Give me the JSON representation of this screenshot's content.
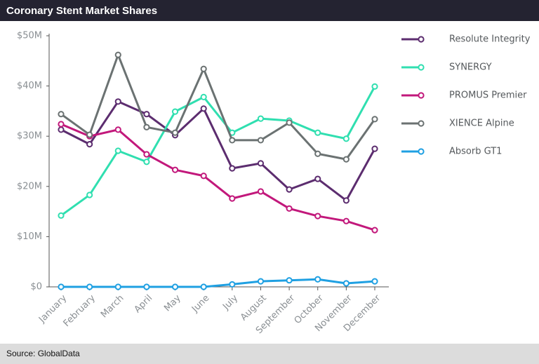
{
  "chart_data": {
    "type": "line",
    "title": "Coronary Stent Market Shares",
    "source": "Source: GlobalData",
    "categories": [
      "January",
      "February",
      "March",
      "April",
      "May",
      "June",
      "July",
      "August",
      "September",
      "October",
      "November",
      "December"
    ],
    "series": [
      {
        "name": "Resolute Integrity",
        "color": "#5c2d6f",
        "values": [
          31.3,
          28.4,
          36.9,
          34.4,
          30.2,
          35.5,
          23.6,
          24.6,
          19.4,
          21.5,
          17.2,
          27.5
        ]
      },
      {
        "name": "SYNERGY",
        "color": "#30dfb0",
        "values": [
          14.2,
          18.3,
          27.1,
          24.9,
          34.9,
          37.8,
          30.7,
          33.5,
          33.1,
          30.7,
          29.5,
          39.9
        ]
      },
      {
        "name": "PROMUS Premier",
        "color": "#c2187b",
        "values": [
          32.4,
          30.0,
          31.3,
          26.4,
          23.3,
          22.1,
          17.6,
          19.0,
          15.6,
          14.1,
          13.1,
          11.3
        ]
      },
      {
        "name": "XIENCE Alpine",
        "color": "#6b7272",
        "values": [
          34.4,
          30.3,
          46.2,
          31.8,
          30.7,
          43.4,
          29.2,
          29.2,
          32.7,
          26.5,
          25.4,
          33.4
        ]
      },
      {
        "name": "Absorb GT1",
        "color": "#1fa0e2",
        "values": [
          0,
          0,
          0,
          0,
          0,
          0,
          0.5,
          1.1,
          1.3,
          1.5,
          0.7,
          1.1
        ]
      }
    ],
    "ylim": [
      0,
      50
    ],
    "yticks": [
      {
        "value": 0,
        "label": "$0"
      },
      {
        "value": 10,
        "label": "$10M"
      },
      {
        "value": 20,
        "label": "$20M"
      },
      {
        "value": 30,
        "label": "$30M"
      },
      {
        "value": 40,
        "label": "$40M"
      },
      {
        "value": 50,
        "label": "$50M"
      }
    ],
    "legend": "right"
  }
}
